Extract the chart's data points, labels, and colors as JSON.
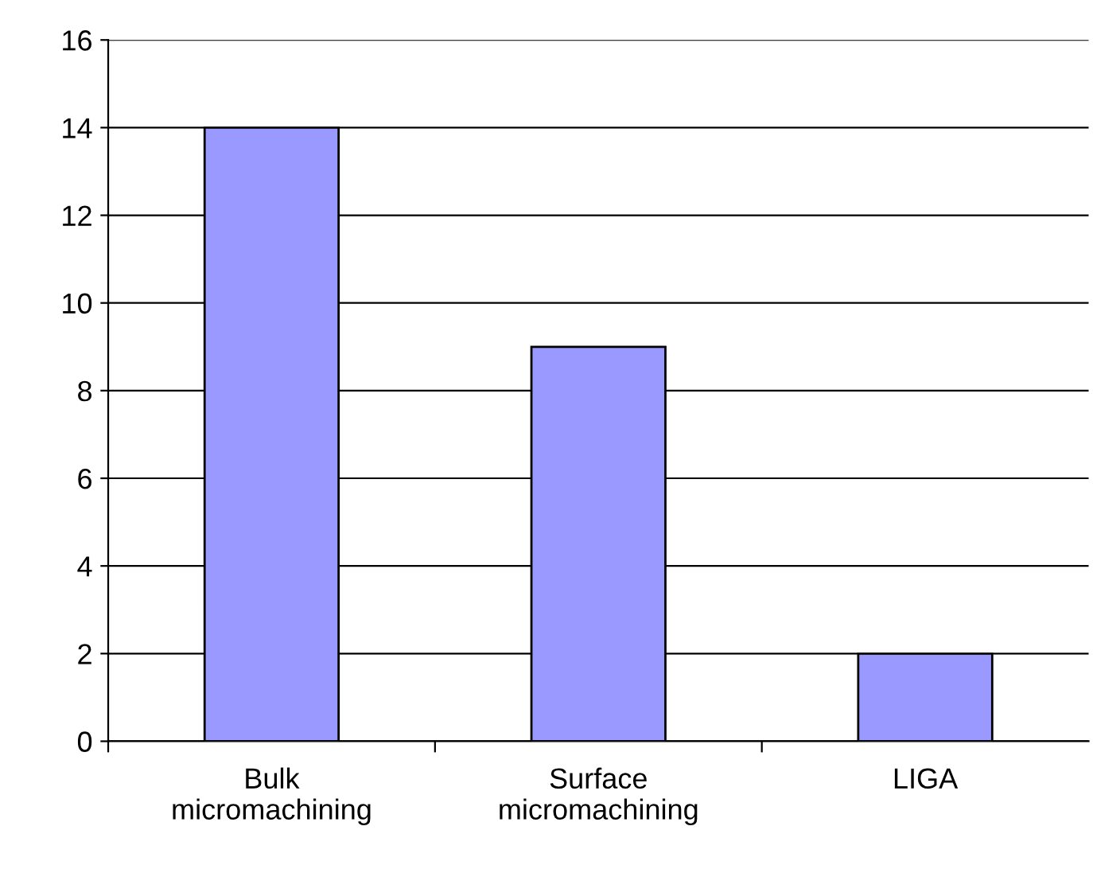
{
  "chart_data": {
    "type": "bar",
    "categories": [
      "Bulk micromachining",
      "Surface micromachining",
      "LIGA"
    ],
    "values": [
      14,
      9,
      2
    ],
    "color": "#9999ff",
    "ylim": [
      0,
      16
    ],
    "yticks": [
      0,
      2,
      4,
      6,
      8,
      10,
      12,
      14,
      16
    ],
    "grid": "y"
  }
}
